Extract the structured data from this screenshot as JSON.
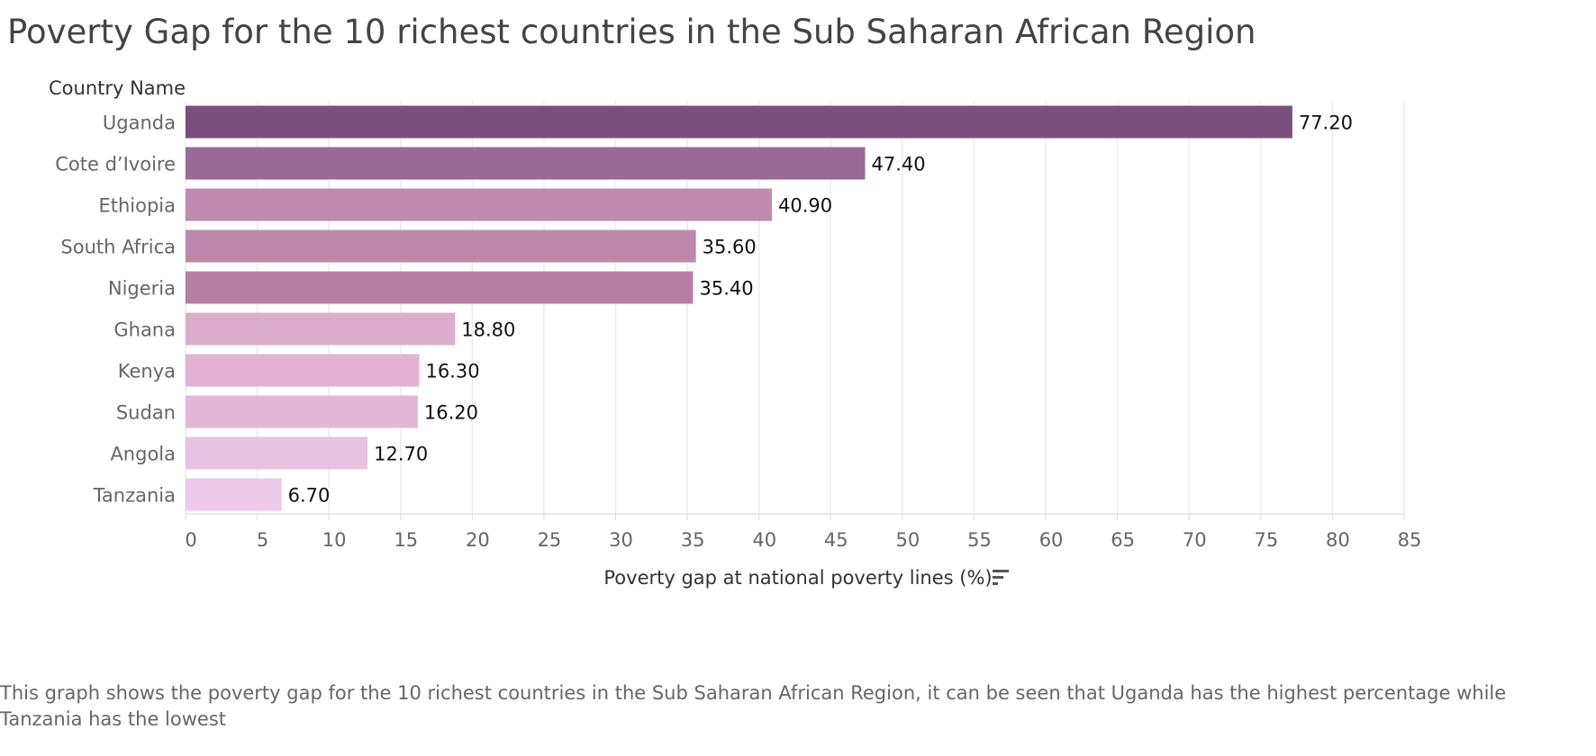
{
  "chart_data": {
    "type": "bar",
    "orientation": "horizontal",
    "title": "Poverty Gap for the 10 richest countries in the Sub Saharan African Region",
    "ylabel": "Country Name",
    "xlabel": "Poverty gap at national poverty lines (%)",
    "categories": [
      "Uganda",
      "Cote d’Ivoire",
      "Ethiopia",
      "South Africa",
      "Nigeria",
      "Ghana",
      "Kenya",
      "Sudan",
      "Angola",
      "Tanzania"
    ],
    "values": [
      77.2,
      47.4,
      40.9,
      35.6,
      35.4,
      18.8,
      16.3,
      16.2,
      12.7,
      6.7
    ],
    "value_labels": [
      "77.20",
      "47.40",
      "40.90",
      "35.60",
      "35.40",
      "18.80",
      "16.30",
      "16.20",
      "12.70",
      "6.70"
    ],
    "colors": [
      "#7b4f7b",
      "#9a6a96",
      "#c08aae",
      "#be88ac",
      "#b57fa3",
      "#dcaccc",
      "#e1b2d2",
      "#e3b7d6",
      "#e8c3e1",
      "#eecaeb"
    ],
    "xlim": [
      0,
      85
    ],
    "xticks": [
      0,
      5,
      10,
      15,
      20,
      25,
      30,
      35,
      40,
      45,
      50,
      55,
      60,
      65,
      70,
      75,
      80,
      85
    ],
    "grid": true,
    "sort_icon": "sort-descending-icon"
  },
  "caption": "This graph shows the poverty gap for the 10 richest countries in the Sub Saharan African Region, it can be seen that Uganda has the highest  percentage while Tanzania has the lowest"
}
